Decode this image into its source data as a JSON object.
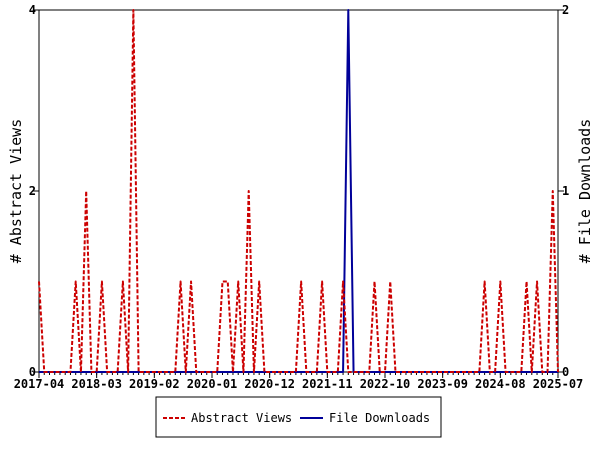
{
  "chart_data": {
    "type": "line",
    "title": "",
    "x_tick_labels": [
      "2017-04",
      "2018-03",
      "2019-02",
      "2020-01",
      "2020-12",
      "2021-11",
      "2022-10",
      "2023-09",
      "2024-08",
      "2025-07"
    ],
    "y_left": {
      "label": "# Abstract Views",
      "range": [
        0,
        4
      ],
      "ticks": [
        0,
        2,
        4
      ]
    },
    "y_right": {
      "label": "# File Downloads",
      "range": [
        0,
        2
      ],
      "ticks": [
        0,
        1,
        2
      ]
    },
    "x_range": [
      "2017-04",
      "2025-07"
    ],
    "grid": false,
    "legend_position": "bottom",
    "x": [
      "2017-04",
      "2017-05",
      "2017-06",
      "2017-07",
      "2017-08",
      "2017-09",
      "2017-10",
      "2017-11",
      "2017-12",
      "2018-01",
      "2018-02",
      "2018-03",
      "2018-04",
      "2018-05",
      "2018-06",
      "2018-07",
      "2018-08",
      "2018-09",
      "2018-10",
      "2018-11",
      "2018-12",
      "2019-01",
      "2019-02",
      "2019-03",
      "2019-04",
      "2019-05",
      "2019-06",
      "2019-07",
      "2019-08",
      "2019-09",
      "2019-10",
      "2019-11",
      "2019-12",
      "2020-01",
      "2020-02",
      "2020-03",
      "2020-04",
      "2020-05",
      "2020-06",
      "2020-07",
      "2020-08",
      "2020-09",
      "2020-10",
      "2020-11",
      "2020-12",
      "2021-01",
      "2021-02",
      "2021-03",
      "2021-04",
      "2021-05",
      "2021-06",
      "2021-07",
      "2021-08",
      "2021-09",
      "2021-10",
      "2021-11",
      "2021-12",
      "2022-01",
      "2022-02",
      "2022-03",
      "2022-04",
      "2022-05",
      "2022-06",
      "2022-07",
      "2022-08",
      "2022-09",
      "2022-10",
      "2022-11",
      "2022-12",
      "2023-01",
      "2023-02",
      "2023-03",
      "2023-04",
      "2023-05",
      "2023-06",
      "2023-07",
      "2023-08",
      "2023-09",
      "2023-10",
      "2023-11",
      "2023-12",
      "2024-01",
      "2024-02",
      "2024-03",
      "2024-04",
      "2024-05",
      "2024-06",
      "2024-07",
      "2024-08",
      "2024-09",
      "2024-10",
      "2024-11",
      "2024-12",
      "2025-01",
      "2025-02",
      "2025-03",
      "2025-04",
      "2025-05",
      "2025-06",
      "2025-07"
    ],
    "series": [
      {
        "name": "Abstract Views",
        "axis": "left",
        "color": "#cc0000",
        "dash": "dashed",
        "values": [
          1,
          0,
          0,
          0,
          0,
          0,
          0,
          1,
          0,
          2,
          0,
          0,
          1,
          0,
          0,
          0,
          1,
          0,
          4,
          0,
          0,
          0,
          0,
          0,
          0,
          0,
          0,
          1,
          0,
          1,
          0,
          0,
          0,
          0,
          0,
          1,
          1,
          0,
          1,
          0,
          2,
          0,
          1,
          0,
          0,
          0,
          0,
          0,
          0,
          0,
          1,
          0,
          0,
          0,
          1,
          0,
          0,
          0,
          1,
          0,
          0,
          0,
          0,
          0,
          1,
          0,
          0,
          1,
          0,
          0,
          0,
          0,
          0,
          0,
          0,
          0,
          0,
          0,
          0,
          0,
          0,
          0,
          0,
          0,
          0,
          1,
          0,
          0,
          1,
          0,
          0,
          0,
          0,
          1,
          0,
          1,
          0,
          0,
          2,
          0
        ]
      },
      {
        "name": "File Downloads",
        "axis": "right",
        "color": "#000099",
        "dash": "solid",
        "values": [
          0,
          0,
          0,
          0,
          0,
          0,
          0,
          0,
          0,
          0,
          0,
          0,
          0,
          0,
          0,
          0,
          0,
          0,
          0,
          0,
          0,
          0,
          0,
          0,
          0,
          0,
          0,
          0,
          0,
          0,
          0,
          0,
          0,
          0,
          0,
          0,
          0,
          0,
          0,
          0,
          0,
          0,
          0,
          0,
          0,
          0,
          0,
          0,
          0,
          0,
          0,
          0,
          0,
          0,
          0,
          0,
          0,
          0,
          0,
          2,
          0,
          0,
          0,
          0,
          0,
          0,
          0,
          0,
          0,
          0,
          0,
          0,
          0,
          0,
          0,
          0,
          0,
          0,
          0,
          0,
          0,
          0,
          0,
          0,
          0,
          0,
          0,
          0,
          0,
          0,
          0,
          0,
          0,
          0,
          0,
          0,
          0,
          0,
          0,
          0
        ]
      }
    ]
  }
}
